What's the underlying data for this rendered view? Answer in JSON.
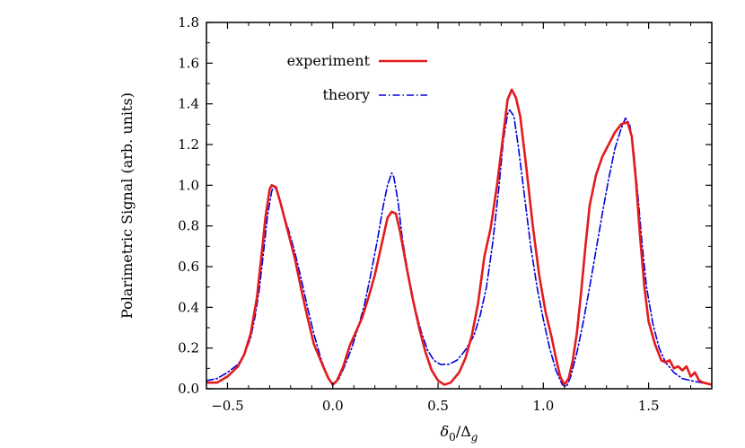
{
  "chart_data": {
    "type": "line",
    "xlabel": "δ0/Δg",
    "xlabel_main": "δ",
    "xlabel_sub1": "0",
    "xlabel_mid": "/Δ",
    "xlabel_sub2": "g",
    "ylabel": "Polarimetric Signal (arb. units)",
    "xlim": [
      -0.6,
      1.8
    ],
    "ylim": [
      0.0,
      1.8
    ],
    "xticks": [
      -0.5,
      0.0,
      0.5,
      1.0,
      1.5
    ],
    "xtick_labels": [
      "−0.5",
      "0.0",
      "0.5",
      "1.0",
      "1.5"
    ],
    "yticks": [
      0.0,
      0.2,
      0.4,
      0.6,
      0.8,
      1.0,
      1.2,
      1.4,
      1.6,
      1.8
    ],
    "ytick_labels": [
      "0.0",
      "0.2",
      "0.4",
      "0.6",
      "0.8",
      "1.0",
      "1.2",
      "1.4",
      "1.6",
      "1.8"
    ],
    "grid": false,
    "legend_position": "top-left",
    "series": [
      {
        "name": "experiment",
        "color": "#e41a1c",
        "style": "solid",
        "points": [
          [
            -0.6,
            0.03
          ],
          [
            -0.55,
            0.03
          ],
          [
            -0.5,
            0.06
          ],
          [
            -0.45,
            0.11
          ],
          [
            -0.42,
            0.17
          ],
          [
            -0.39,
            0.27
          ],
          [
            -0.36,
            0.45
          ],
          [
            -0.34,
            0.64
          ],
          [
            -0.32,
            0.84
          ],
          [
            -0.3,
            0.98
          ],
          [
            -0.29,
            1.0
          ],
          [
            -0.27,
            0.99
          ],
          [
            -0.25,
            0.92
          ],
          [
            -0.23,
            0.84
          ],
          [
            -0.21,
            0.76
          ],
          [
            -0.18,
            0.64
          ],
          [
            -0.15,
            0.49
          ],
          [
            -0.12,
            0.35
          ],
          [
            -0.09,
            0.22
          ],
          [
            -0.05,
            0.12
          ],
          [
            -0.02,
            0.05
          ],
          [
            0.0,
            0.02
          ],
          [
            0.02,
            0.04
          ],
          [
            0.05,
            0.11
          ],
          [
            0.08,
            0.21
          ],
          [
            0.11,
            0.28
          ],
          [
            0.14,
            0.35
          ],
          [
            0.17,
            0.45
          ],
          [
            0.2,
            0.56
          ],
          [
            0.23,
            0.7
          ],
          [
            0.26,
            0.84
          ],
          [
            0.28,
            0.87
          ],
          [
            0.3,
            0.86
          ],
          [
            0.32,
            0.77
          ],
          [
            0.35,
            0.6
          ],
          [
            0.38,
            0.44
          ],
          [
            0.41,
            0.3
          ],
          [
            0.44,
            0.18
          ],
          [
            0.47,
            0.09
          ],
          [
            0.5,
            0.04
          ],
          [
            0.53,
            0.02
          ],
          [
            0.56,
            0.03
          ],
          [
            0.6,
            0.08
          ],
          [
            0.63,
            0.15
          ],
          [
            0.66,
            0.26
          ],
          [
            0.69,
            0.42
          ],
          [
            0.72,
            0.65
          ],
          [
            0.75,
            0.79
          ],
          [
            0.78,
            1.0
          ],
          [
            0.81,
            1.25
          ],
          [
            0.83,
            1.42
          ],
          [
            0.85,
            1.47
          ],
          [
            0.87,
            1.43
          ],
          [
            0.89,
            1.34
          ],
          [
            0.92,
            1.08
          ],
          [
            0.95,
            0.8
          ],
          [
            0.98,
            0.56
          ],
          [
            1.01,
            0.38
          ],
          [
            1.04,
            0.25
          ],
          [
            1.06,
            0.15
          ],
          [
            1.08,
            0.06
          ],
          [
            1.1,
            0.02
          ],
          [
            1.12,
            0.05
          ],
          [
            1.14,
            0.14
          ],
          [
            1.16,
            0.28
          ],
          [
            1.18,
            0.48
          ],
          [
            1.2,
            0.7
          ],
          [
            1.22,
            0.9
          ],
          [
            1.25,
            1.05
          ],
          [
            1.28,
            1.14
          ],
          [
            1.31,
            1.2
          ],
          [
            1.34,
            1.26
          ],
          [
            1.37,
            1.3
          ],
          [
            1.4,
            1.31
          ],
          [
            1.42,
            1.24
          ],
          [
            1.44,
            1.02
          ],
          [
            1.46,
            0.74
          ],
          [
            1.48,
            0.5
          ],
          [
            1.5,
            0.33
          ],
          [
            1.53,
            0.22
          ],
          [
            1.56,
            0.14
          ],
          [
            1.58,
            0.13
          ],
          [
            1.6,
            0.14
          ],
          [
            1.62,
            0.1
          ],
          [
            1.64,
            0.11
          ],
          [
            1.66,
            0.09
          ],
          [
            1.68,
            0.11
          ],
          [
            1.7,
            0.06
          ],
          [
            1.72,
            0.08
          ],
          [
            1.74,
            0.04
          ],
          [
            1.76,
            0.03
          ],
          [
            1.8,
            0.02
          ]
        ]
      },
      {
        "name": "theory",
        "color": "#0000dd",
        "style": "dashdot",
        "points": [
          [
            -0.6,
            0.04
          ],
          [
            -0.55,
            0.05
          ],
          [
            -0.5,
            0.08
          ],
          [
            -0.45,
            0.12
          ],
          [
            -0.42,
            0.17
          ],
          [
            -0.39,
            0.25
          ],
          [
            -0.37,
            0.35
          ],
          [
            -0.35,
            0.48
          ],
          [
            -0.33,
            0.66
          ],
          [
            -0.31,
            0.85
          ],
          [
            -0.29,
            0.97
          ],
          [
            -0.28,
            1.0
          ],
          [
            -0.26,
            0.96
          ],
          [
            -0.24,
            0.88
          ],
          [
            -0.21,
            0.78
          ],
          [
            -0.18,
            0.67
          ],
          [
            -0.15,
            0.54
          ],
          [
            -0.12,
            0.4
          ],
          [
            -0.09,
            0.27
          ],
          [
            -0.06,
            0.16
          ],
          [
            -0.03,
            0.07
          ],
          [
            0.0,
            0.02
          ],
          [
            0.03,
            0.05
          ],
          [
            0.06,
            0.12
          ],
          [
            0.09,
            0.2
          ],
          [
            0.12,
            0.3
          ],
          [
            0.15,
            0.41
          ],
          [
            0.18,
            0.56
          ],
          [
            0.21,
            0.72
          ],
          [
            0.24,
            0.9
          ],
          [
            0.26,
            1.0
          ],
          [
            0.28,
            1.06
          ],
          [
            0.29,
            1.04
          ],
          [
            0.31,
            0.92
          ],
          [
            0.33,
            0.74
          ],
          [
            0.36,
            0.55
          ],
          [
            0.39,
            0.4
          ],
          [
            0.42,
            0.28
          ],
          [
            0.45,
            0.19
          ],
          [
            0.48,
            0.14
          ],
          [
            0.51,
            0.12
          ],
          [
            0.55,
            0.12
          ],
          [
            0.59,
            0.14
          ],
          [
            0.63,
            0.19
          ],
          [
            0.67,
            0.26
          ],
          [
            0.7,
            0.36
          ],
          [
            0.73,
            0.5
          ],
          [
            0.76,
            0.72
          ],
          [
            0.79,
            1.0
          ],
          [
            0.81,
            1.22
          ],
          [
            0.83,
            1.35
          ],
          [
            0.84,
            1.37
          ],
          [
            0.86,
            1.34
          ],
          [
            0.88,
            1.2
          ],
          [
            0.91,
            0.95
          ],
          [
            0.94,
            0.7
          ],
          [
            0.97,
            0.5
          ],
          [
            1.0,
            0.34
          ],
          [
            1.03,
            0.2
          ],
          [
            1.06,
            0.09
          ],
          [
            1.09,
            0.02
          ],
          [
            1.11,
            0.01
          ],
          [
            1.13,
            0.06
          ],
          [
            1.16,
            0.18
          ],
          [
            1.19,
            0.33
          ],
          [
            1.22,
            0.5
          ],
          [
            1.25,
            0.68
          ],
          [
            1.28,
            0.86
          ],
          [
            1.31,
            1.03
          ],
          [
            1.34,
            1.18
          ],
          [
            1.37,
            1.28
          ],
          [
            1.39,
            1.33
          ],
          [
            1.41,
            1.3
          ],
          [
            1.43,
            1.16
          ],
          [
            1.45,
            0.94
          ],
          [
            1.47,
            0.7
          ],
          [
            1.49,
            0.5
          ],
          [
            1.52,
            0.32
          ],
          [
            1.55,
            0.2
          ],
          [
            1.58,
            0.13
          ],
          [
            1.62,
            0.08
          ],
          [
            1.66,
            0.05
          ],
          [
            1.7,
            0.04
          ],
          [
            1.75,
            0.03
          ],
          [
            1.8,
            0.02
          ]
        ]
      }
    ]
  }
}
